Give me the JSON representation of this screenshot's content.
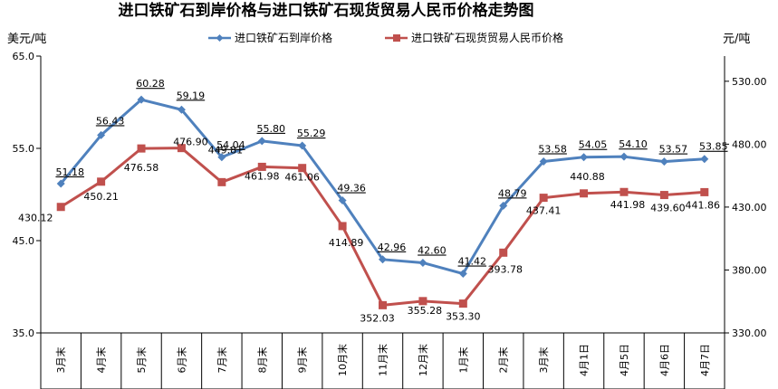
{
  "chart_data": {
    "type": "line",
    "title": "进口铁矿石到岸价格与进口铁矿石现货贸易人民币价格走势图",
    "ylabel_left": "美元/吨",
    "ylabel_right": "元/吨",
    "categories": [
      "3月末",
      "4月末",
      "5月末",
      "6月末",
      "7月末",
      "8月末",
      "9月末",
      "10月末",
      "11月末",
      "12月末",
      "1月末",
      "2月末",
      "3月末",
      "4月1日",
      "4月5日",
      "4月6日",
      "4月7日"
    ],
    "ylim_left": [
      35.0,
      65.0
    ],
    "yticks_left": [
      "35.0",
      "45.0",
      "55.0",
      "65.0"
    ],
    "ylim_right": [
      330.0,
      550.0
    ],
    "yticks_right": [
      "330.00",
      "380.00",
      "430.00",
      "480.00",
      "530.00"
    ],
    "legend_position": "top",
    "series": [
      {
        "name": "进口铁矿石到岸价格",
        "axis": "left",
        "color": "#4F81BD",
        "marker": "diamond",
        "values": [
          51.18,
          56.43,
          60.28,
          59.19,
          54.04,
          55.8,
          55.29,
          49.36,
          42.96,
          42.6,
          41.42,
          48.79,
          53.58,
          54.05,
          54.1,
          53.57,
          53.85
        ],
        "labels": [
          "51.18",
          "56.43",
          "60.28",
          "59.19",
          "54.04",
          "55.80",
          "55.29",
          "49.36",
          "42.96",
          "42.60",
          "41.42",
          "48.79",
          "53.58",
          "54.05",
          "54.10",
          "53.57",
          "53.85"
        ]
      },
      {
        "name": "进口铁矿石现货贸易人民币价格",
        "axis": "right",
        "color": "#C0504D",
        "marker": "square",
        "values": [
          430.12,
          450.21,
          476.58,
          476.9,
          449.81,
          461.98,
          461.06,
          414.89,
          352.03,
          355.28,
          353.3,
          393.78,
          437.41,
          440.88,
          441.98,
          439.6,
          441.86
        ],
        "labels": [
          "430.12",
          "450.21",
          "476.58",
          "476.90",
          "449.81",
          "461.98",
          "461.06",
          "414.89",
          "352.03",
          "355.28",
          "353.30",
          "393.78",
          "437.41",
          "440.88",
          "441.98",
          "439.60",
          "441.86"
        ]
      }
    ]
  }
}
